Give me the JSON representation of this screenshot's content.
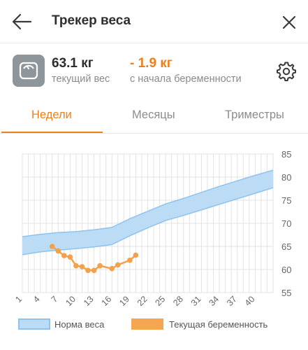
{
  "header": {
    "title": "Трекер веса",
    "back_icon": "arrow-left-icon",
    "close_icon": "close-icon"
  },
  "stats": {
    "current_value": "63.1 кг",
    "current_caption": "текущий вес",
    "change_value": "- 1.9 кг",
    "change_caption": "с начала беременности",
    "scale_icon": "scale-icon",
    "settings_icon": "gear-icon"
  },
  "tabs": [
    {
      "label": "Недели",
      "active": true
    },
    {
      "label": "Месяцы",
      "active": false
    },
    {
      "label": "Триместры",
      "active": false
    }
  ],
  "colors": {
    "accent": "#ee7f1b",
    "norm_band_fill": "#bcdcf6",
    "norm_band_stroke": "#8ec3ee",
    "current_series": "#f5a04b",
    "grid": "#e3e3e3"
  },
  "chart_data": {
    "type": "line",
    "xlim": [
      1,
      43
    ],
    "ylim": [
      55,
      85
    ],
    "x_ticks": [
      1,
      4,
      7,
      10,
      13,
      16,
      19,
      22,
      25,
      28,
      31,
      34,
      37,
      40
    ],
    "y_ticks": [
      55,
      60,
      65,
      70,
      75,
      80,
      85
    ],
    "grid": true,
    "legend_position": "bottom",
    "series": [
      {
        "name": "Норма веса",
        "kind": "band",
        "x": [
          1,
          4,
          7,
          10,
          13,
          16,
          19,
          22,
          25,
          28,
          31,
          34,
          37,
          40,
          43
        ],
        "lower": [
          63.2,
          63.8,
          64.2,
          64.5,
          64.9,
          65.4,
          67.3,
          69.0,
          70.6,
          71.7,
          72.9,
          74.1,
          75.3,
          76.5,
          77.7
        ],
        "upper": [
          67.1,
          67.6,
          68.0,
          68.2,
          68.6,
          69.1,
          71.0,
          72.6,
          74.2,
          75.4,
          76.7,
          78.0,
          79.2,
          80.4,
          81.5
        ]
      },
      {
        "name": "Текущая беременность",
        "kind": "line",
        "x": [
          6,
          7,
          8,
          9,
          10,
          11,
          12,
          13,
          14,
          16,
          17,
          19,
          20
        ],
        "values": [
          65.0,
          64.0,
          63.0,
          62.7,
          60.8,
          60.6,
          59.8,
          59.8,
          60.8,
          60.2,
          61.0,
          62.0,
          63.1
        ]
      }
    ]
  }
}
